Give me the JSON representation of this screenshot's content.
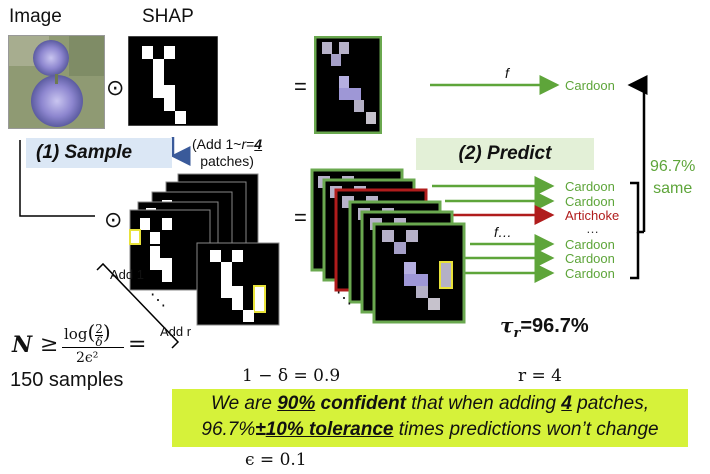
{
  "headers": {
    "image": "Image",
    "shap": "SHAP"
  },
  "symbols": {
    "odot": "⊙",
    "equals": "=",
    "equals2": "=",
    "odot2": "⊙"
  },
  "sample": {
    "label": "(1) Sample",
    "note_prefix": "(Add 1~",
    "note_r": "r",
    "note_eq": "=",
    "note_val": "4",
    "note_suffix": "patches)"
  },
  "predict": {
    "label": "(2) Predict"
  },
  "function_labels": {
    "f": "f",
    "f_dots": "f…"
  },
  "outputs": {
    "top": "Cardoon",
    "stack": [
      "Cardoon",
      "Cardoon",
      "Artichoke",
      "…",
      "Cardoon",
      "Cardoon",
      "Cardoon"
    ]
  },
  "agreement": {
    "percent": "96.7%",
    "word": "same"
  },
  "add_labels": {
    "first": "Add 1",
    "last": "Add r",
    "dots": "⋱"
  },
  "formula": {
    "n": "N",
    "geq": "≥",
    "log": "log",
    "two": "2",
    "delta": "δ",
    "den": "2ϵ²",
    "eq": "="
  },
  "samples_text": "150 samples",
  "tau": {
    "symbol": "τ",
    "sub": "r",
    "value": "=96.7%"
  },
  "params": {
    "one_minus_delta": "1 − δ = 0.9",
    "r_eq": "r = 4",
    "epsilon": "ϵ = 0.1"
  },
  "callout": {
    "l1_a": "We are ",
    "l1_b": "90%",
    "l1_c": " ",
    "l1_d": "confident",
    "l1_e": " that when adding ",
    "l1_f": "4",
    "l1_g": " patches,",
    "l2_a": "96.7%",
    "l2_b": "±",
    "l2_c": "10% tolerance",
    "l2_d": " times predictions won’t change"
  },
  "colors": {
    "green": "#5ea53a",
    "red": "#b01c1c",
    "yellow": "#e8e23a",
    "sample_bg": "#dbe7f5",
    "predict_bg": "#e3f0d7",
    "callout_bg": "#d6f23a"
  }
}
